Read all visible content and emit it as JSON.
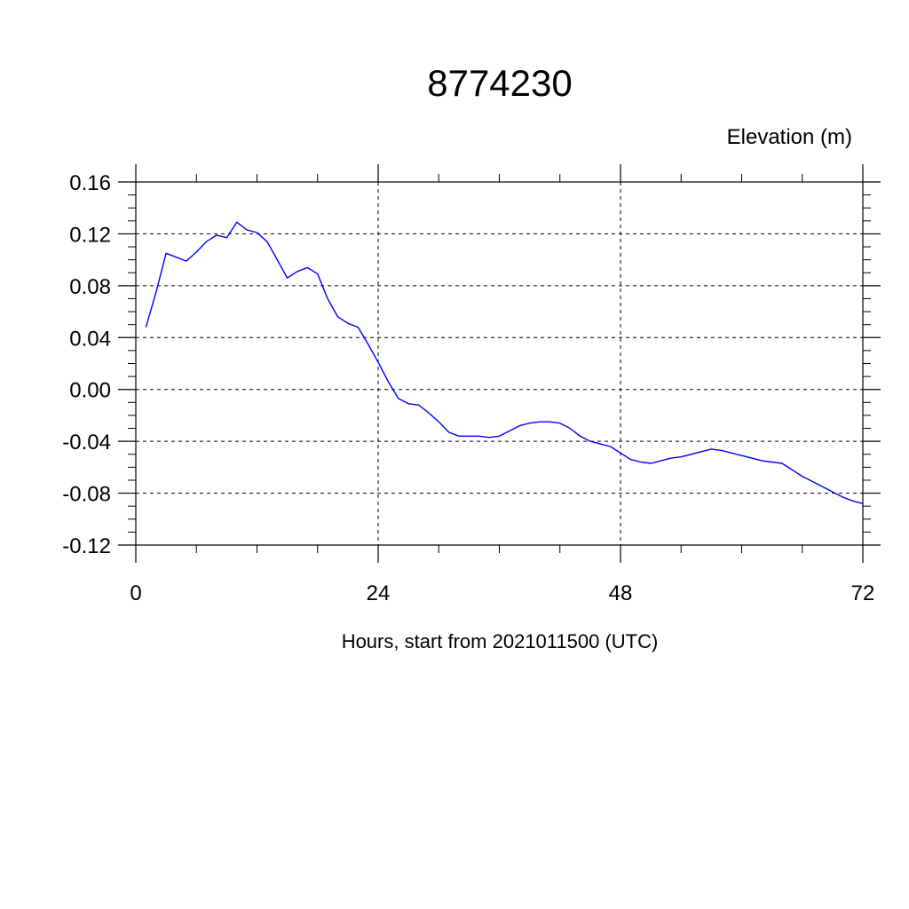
{
  "chart_data": {
    "type": "line",
    "title": "8774230",
    "ylabel": "Elevation (m)",
    "xlabel": "Hours, start from 2021011500 (UTC)",
    "xlim": [
      0,
      72
    ],
    "ylim": [
      -0.12,
      0.16
    ],
    "x_ticks": [
      0,
      24,
      48,
      72
    ],
    "x_tick_labels": [
      "0",
      "24",
      "48",
      "72"
    ],
    "y_ticks": [
      -0.12,
      -0.08,
      -0.04,
      0.0,
      0.04,
      0.08,
      0.12,
      0.16
    ],
    "y_tick_labels": [
      "-0.12",
      "-0.08",
      "-0.04",
      "0.00",
      "0.04",
      "0.08",
      "0.12",
      "0.16"
    ],
    "grid": true,
    "line_color": "#0000ff",
    "series": [
      {
        "x": [
          1,
          2,
          3,
          4,
          5,
          6,
          7,
          8,
          9,
          10,
          11,
          12,
          13,
          14,
          15,
          16,
          17,
          18,
          19,
          20,
          21,
          22,
          23,
          24,
          25,
          26,
          27,
          28,
          29,
          30,
          31,
          32,
          33,
          34,
          35,
          36,
          37,
          38,
          39,
          40,
          41,
          42,
          43,
          44,
          45,
          46,
          47,
          48,
          49,
          50,
          51,
          52,
          53,
          54,
          55,
          56,
          57,
          58,
          59,
          60,
          61,
          62,
          63,
          64,
          65,
          66,
          67,
          68,
          69,
          70,
          71,
          72
        ],
        "y": [
          0.048,
          0.075,
          0.105,
          0.102,
          0.099,
          0.106,
          0.114,
          0.119,
          0.117,
          0.129,
          0.123,
          0.121,
          0.114,
          0.1,
          0.086,
          0.091,
          0.094,
          0.089,
          0.07,
          0.056,
          0.051,
          0.048,
          0.035,
          0.021,
          0.006,
          -0.007,
          -0.011,
          -0.012,
          -0.018,
          -0.025,
          -0.033,
          -0.036,
          -0.036,
          -0.036,
          -0.037,
          -0.036,
          -0.032,
          -0.028,
          -0.026,
          -0.025,
          -0.025,
          -0.026,
          -0.03,
          -0.036,
          -0.04,
          -0.042,
          -0.044,
          -0.049,
          -0.054,
          -0.056,
          -0.057,
          -0.055,
          -0.053,
          -0.052,
          -0.05,
          -0.048,
          -0.046,
          -0.047,
          -0.049,
          -0.051,
          -0.053,
          -0.055,
          -0.056,
          -0.057,
          -0.062,
          -0.067,
          -0.071,
          -0.075,
          -0.079,
          -0.083,
          -0.086,
          -0.088
        ]
      }
    ]
  }
}
